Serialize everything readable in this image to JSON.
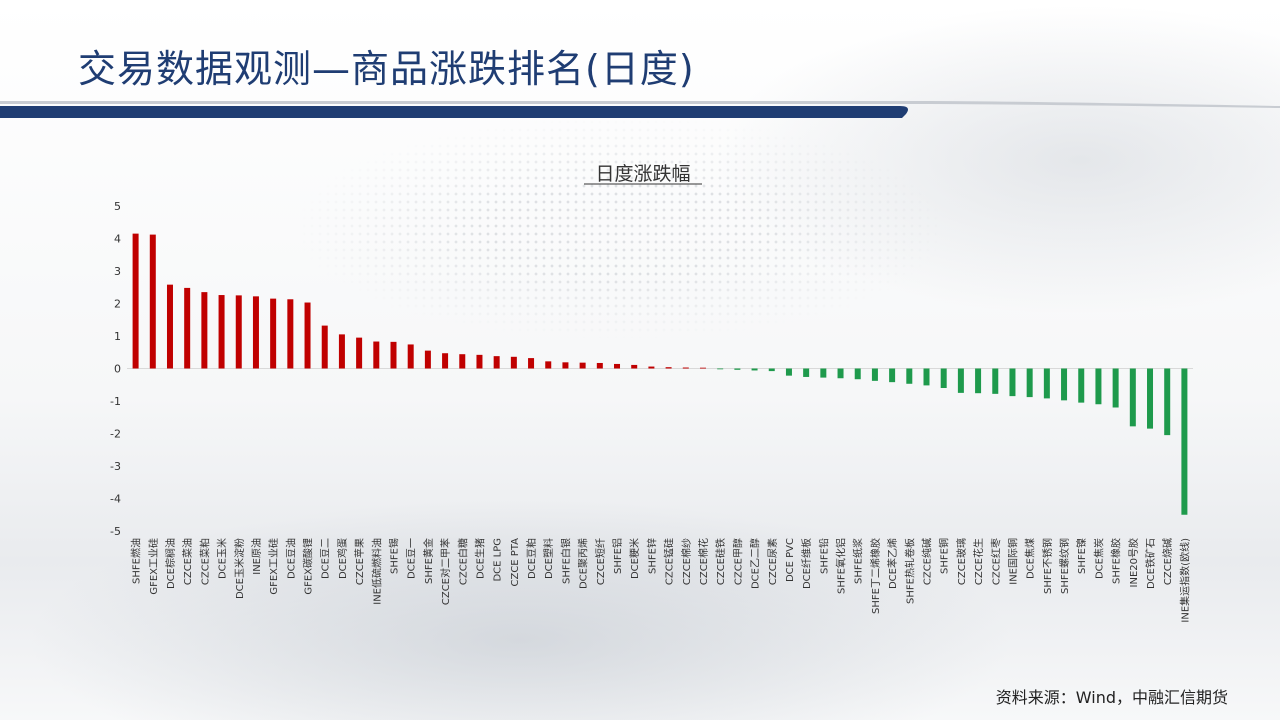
{
  "page": {
    "title": "交易数据观测—商品涨跌排名(日度)",
    "source": "资料来源：Wind，中融汇信期货"
  },
  "colors": {
    "title": "#1f3d73",
    "up": "#c00000",
    "down": "#1e9a4c",
    "header_band": "#1f3d73"
  },
  "chart_data": {
    "type": "bar",
    "title": "日度涨跌幅",
    "xlabel": "",
    "ylabel": "",
    "ylim": [
      -5,
      5
    ],
    "yticks": [
      5,
      4,
      3,
      2,
      1,
      0,
      -1,
      -2,
      -3,
      -4,
      -5
    ],
    "grid": false,
    "categories": [
      "SHFE燃油",
      "GFEX工业硅",
      "DCE棕榈油",
      "CZCE菜油",
      "CZCE菜粕",
      "DCE玉米",
      "DCE玉米淀粉",
      "INE原油",
      "GFEX工业硅",
      "DCE豆油",
      "GFEX碳酸锂",
      "DCE豆二",
      "DCE鸡蛋",
      "CZCE苹果",
      "INE低硫燃料油",
      "SHFE锡",
      "DCE豆一",
      "SHFE黄金",
      "CZCE对二甲苯",
      "CZCE白糖",
      "DCE生猪",
      "DCE LPG",
      "CZCE PTA",
      "DCE豆粕",
      "DCE塑料",
      "SHFE白银",
      "DCE聚丙烯",
      "CZCE短纤",
      "SHFE铝",
      "DCE粳米",
      "SHFE锌",
      "CZCE锰硅",
      "CZCE棉纱",
      "CZCE棉花",
      "CZCE硅铁",
      "CZCE甲醇",
      "DCE乙二醇",
      "CZCE尿素",
      "DCE PVC",
      "DCE纤维板",
      "SHFE铅",
      "SHFE氧化铝",
      "SHFE纸浆",
      "SHFE丁二烯橡胶",
      "DCE苯乙烯",
      "SHFE热轧卷板",
      "CZCE纯碱",
      "SHFE铜",
      "CZCE玻璃",
      "CZCE花生",
      "CZCE红枣",
      "INE国际铜",
      "DCE焦煤",
      "SHFE不锈钢",
      "SHFE螺纹钢",
      "SHFE镍",
      "DCE焦炭",
      "SHFE橡胶",
      "INE20号胶",
      "DCE铁矿石",
      "CZCE烧碱",
      "INE集运指数(欧线)"
    ],
    "values": [
      4.15,
      4.12,
      2.58,
      2.48,
      2.35,
      2.26,
      2.25,
      2.22,
      2.15,
      2.13,
      2.03,
      1.32,
      1.05,
      0.95,
      0.83,
      0.82,
      0.74,
      0.55,
      0.47,
      0.44,
      0.42,
      0.38,
      0.36,
      0.32,
      0.22,
      0.19,
      0.18,
      0.17,
      0.14,
      0.11,
      0.06,
      0.04,
      0.03,
      0.0,
      -0.02,
      -0.04,
      -0.06,
      -0.08,
      -0.22,
      -0.26,
      -0.28,
      -0.3,
      -0.33,
      -0.38,
      -0.42,
      -0.47,
      -0.52,
      -0.6,
      -0.75,
      -0.76,
      -0.78,
      -0.85,
      -0.88,
      -0.92,
      -0.98,
      -1.05,
      -1.1,
      -1.2,
      -1.78,
      -1.85,
      -2.05,
      -4.5
    ]
  }
}
